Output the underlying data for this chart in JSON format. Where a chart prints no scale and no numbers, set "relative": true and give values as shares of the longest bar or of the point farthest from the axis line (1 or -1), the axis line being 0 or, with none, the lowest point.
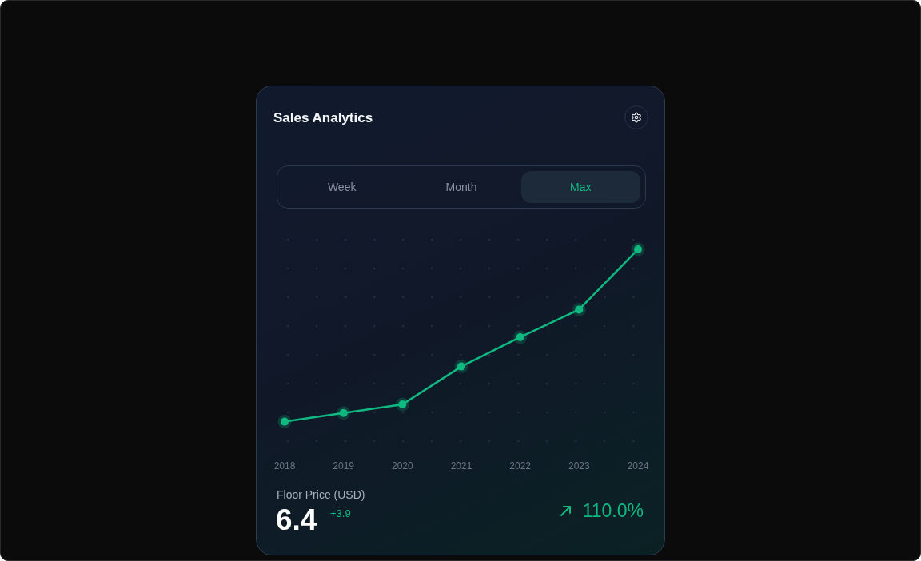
{
  "chart_data": {
    "type": "line",
    "title": "Sales Analytics",
    "categories": [
      "2018",
      "2019",
      "2020",
      "2021",
      "2022",
      "2023",
      "2024"
    ],
    "series": [
      {
        "color": "#10b981",
        "values": [
          0,
          0.05,
          0.1,
          0.32,
          0.49,
          0.65,
          1
        ]
      }
    ],
    "relative": true,
    "marker": "circle",
    "line_style": "solid",
    "annotations": [
      "Week",
      "Month",
      "Max",
      "Floor Price (USD)",
      "6.4",
      "+3.9",
      "110.0%"
    ]
  }
}
